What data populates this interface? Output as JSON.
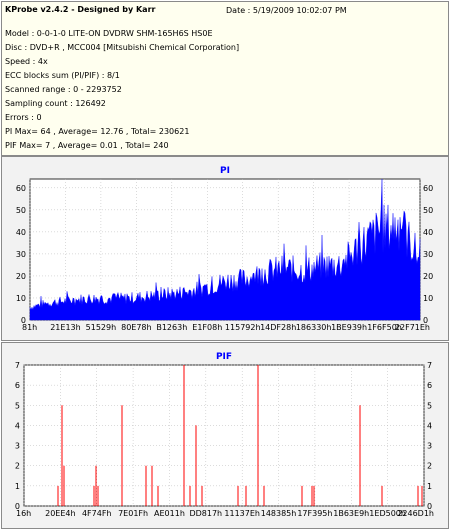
{
  "header": {
    "title": "KProbe v2.4.2 - Designed by Karr",
    "date": "Date : 5/19/2009 10:02:07 PM",
    "lines": [
      "Model : 0-0-1-0 LITE-ON DVDRW SHM-165H6S HS0E",
      "Disc : DVD+R , MCC004 [Mitsubishi Chemical Corporation]",
      "Speed : 4x",
      "ECC blocks sum (PI/PIF) : 8/1",
      "Scanned range : 0 - 2293752",
      "Sampling count : 126492",
      "Errors : 0",
      "PI Max= 64 , Average= 12.76 , Total= 230621",
      "PIF Max= 7 , Average= 0.01 , Total= 240"
    ]
  },
  "colors": {
    "pi": "#0000ff",
    "pif": "#ff0000",
    "plot_bg": "#ffffff",
    "panel_bg": "#f2f2f2",
    "info_bg": "#ffffef"
  },
  "chart_data": [
    {
      "type": "area",
      "title": "PI",
      "ylim": [
        0,
        64
      ],
      "yticks": [
        0,
        10,
        20,
        30,
        40,
        50,
        60
      ],
      "xtick_labels": [
        "81h",
        "21E13h",
        "51529h",
        "80E78h",
        "B1263h",
        "E1F08h",
        "115792h",
        "14DF28h",
        "186330h",
        "1BE939h",
        "1F6F50h",
        "22F71Eh"
      ],
      "grid": true,
      "trend": [
        {
          "x": 0.0,
          "y": 6
        },
        {
          "x": 0.05,
          "y": 8
        },
        {
          "x": 0.1,
          "y": 9
        },
        {
          "x": 0.15,
          "y": 10
        },
        {
          "x": 0.2,
          "y": 10
        },
        {
          "x": 0.25,
          "y": 10
        },
        {
          "x": 0.3,
          "y": 11
        },
        {
          "x": 0.35,
          "y": 12
        },
        {
          "x": 0.4,
          "y": 13
        },
        {
          "x": 0.45,
          "y": 15
        },
        {
          "x": 0.5,
          "y": 18
        },
        {
          "x": 0.55,
          "y": 19
        },
        {
          "x": 0.6,
          "y": 22
        },
        {
          "x": 0.65,
          "y": 24
        },
        {
          "x": 0.7,
          "y": 23
        },
        {
          "x": 0.75,
          "y": 25
        },
        {
          "x": 0.8,
          "y": 26
        },
        {
          "x": 0.85,
          "y": 35
        },
        {
          "x": 0.9,
          "y": 42
        },
        {
          "x": 0.95,
          "y": 44
        },
        {
          "x": 1.0,
          "y": 28
        }
      ],
      "max": 64
    },
    {
      "type": "bar",
      "title": "PIF",
      "ylim": [
        0,
        7
      ],
      "yticks": [
        0,
        1,
        2,
        3,
        4,
        5,
        6,
        7
      ],
      "xtick_labels": [
        "16h",
        "20EE4h",
        "4F74Fh",
        "7E01Fh",
        "AE011h",
        "DD817h",
        "11137Eh",
        "148385h",
        "17F395h",
        "1B63E9h",
        "1ED500h",
        "2246D1h"
      ],
      "grid": true,
      "spikes": [
        {
          "x": 0.085,
          "y": 1
        },
        {
          "x": 0.095,
          "y": 5
        },
        {
          "x": 0.1,
          "y": 2
        },
        {
          "x": 0.175,
          "y": 1
        },
        {
          "x": 0.18,
          "y": 2
        },
        {
          "x": 0.185,
          "y": 1
        },
        {
          "x": 0.245,
          "y": 5
        },
        {
          "x": 0.305,
          "y": 2
        },
        {
          "x": 0.32,
          "y": 2
        },
        {
          "x": 0.335,
          "y": 1
        },
        {
          "x": 0.4,
          "y": 7
        },
        {
          "x": 0.415,
          "y": 1
        },
        {
          "x": 0.43,
          "y": 4
        },
        {
          "x": 0.445,
          "y": 1
        },
        {
          "x": 0.535,
          "y": 1
        },
        {
          "x": 0.555,
          "y": 1
        },
        {
          "x": 0.585,
          "y": 7
        },
        {
          "x": 0.6,
          "y": 1
        },
        {
          "x": 0.695,
          "y": 1
        },
        {
          "x": 0.72,
          "y": 1
        },
        {
          "x": 0.725,
          "y": 1
        },
        {
          "x": 0.84,
          "y": 5
        },
        {
          "x": 0.895,
          "y": 1
        },
        {
          "x": 0.985,
          "y": 1
        },
        {
          "x": 0.995,
          "y": 1
        }
      ]
    }
  ]
}
